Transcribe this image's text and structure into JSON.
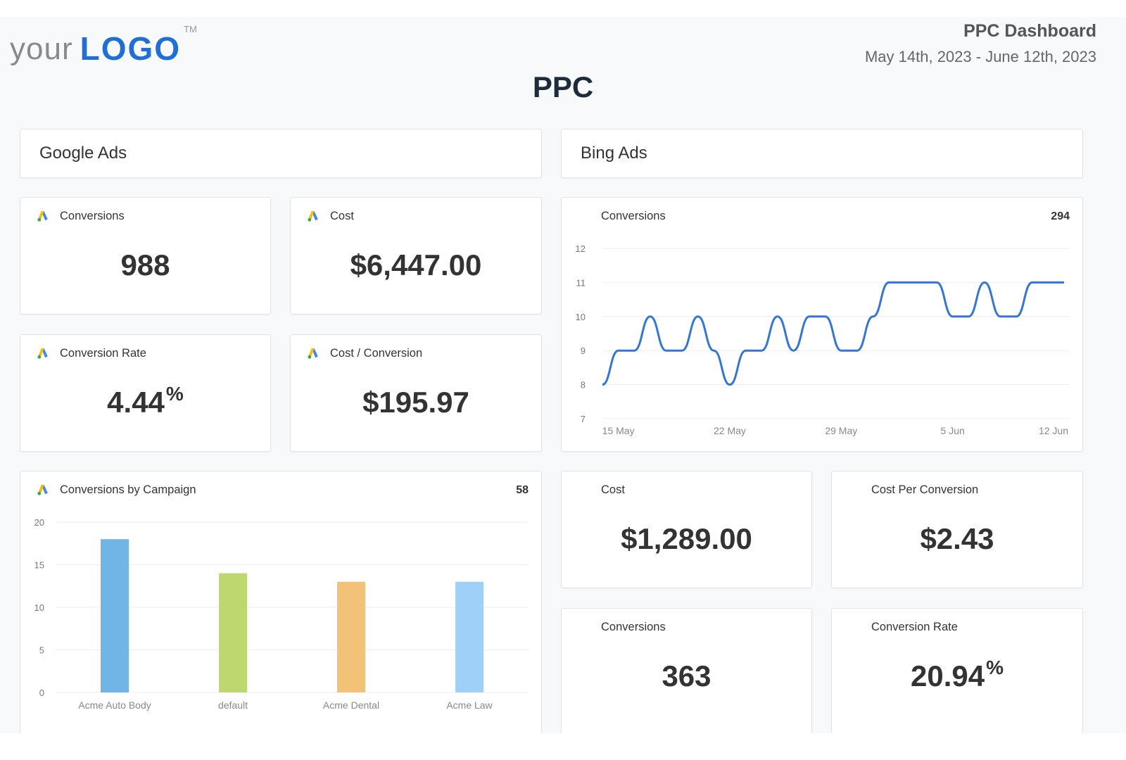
{
  "header": {
    "logo_your": "your",
    "logo_logo": "LOGO",
    "logo_tm": "TM",
    "dashboard_title": "PPC Dashboard",
    "date_range": "May 14th, 2023 - June 12th, 2023",
    "page_title": "PPC"
  },
  "sections": {
    "google": "Google Ads",
    "bing": "Bing Ads"
  },
  "icons": {
    "google": "google-ads-icon",
    "bing": "microsoft-ads-icon",
    "colors": {
      "google_blue": "#4285F4",
      "google_yellow": "#FBBC04",
      "google_green": "#34A853",
      "ms_red": "#F25022",
      "ms_green": "#7FBA00",
      "ms_blue": "#00A4EF",
      "ms_yellow": "#FFB900"
    }
  },
  "google_cards": {
    "conversions": {
      "label": "Conversions",
      "value": "988"
    },
    "cost": {
      "label": "Cost",
      "value": "$6,447.00"
    },
    "conversion_rate": {
      "label": "Conversion Rate",
      "value": "4.44",
      "unit": "%"
    },
    "cost_per_conversion": {
      "label": "Cost / Conversion",
      "value": "$195.97"
    }
  },
  "bing_cards": {
    "cost": {
      "label": "Cost",
      "value": "$1,289.00"
    },
    "cost_per_conversion": {
      "label": "Cost Per Conversion",
      "value": "$2.43"
    },
    "conversions": {
      "label": "Conversions",
      "value": "363"
    },
    "conversion_rate": {
      "label": "Conversion Rate",
      "value": "20.94",
      "unit": "%"
    }
  },
  "campaign_chart": {
    "label": "Conversions by Campaign",
    "count": "58"
  },
  "bing_line_chart": {
    "label": "Conversions",
    "count": "294"
  },
  "chart_data": [
    {
      "type": "bar",
      "title": "Conversions by Campaign",
      "categories": [
        "Acme Auto Body",
        "default",
        "Acme Dental",
        "Acme Law"
      ],
      "values": [
        18,
        14,
        13,
        13
      ],
      "colors": [
        "#70b5e5",
        "#bcd86e",
        "#f1c278",
        "#9fd1f8"
      ],
      "ylim": [
        0,
        20
      ],
      "yticks": [
        0,
        5,
        10,
        15,
        20
      ],
      "grid": true
    },
    {
      "type": "line",
      "title": "Conversions",
      "x": [
        "2023-05-14",
        "2023-05-15",
        "2023-05-16",
        "2023-05-17",
        "2023-05-18",
        "2023-05-19",
        "2023-05-20",
        "2023-05-21",
        "2023-05-22",
        "2023-05-23",
        "2023-05-24",
        "2023-05-25",
        "2023-05-26",
        "2023-05-27",
        "2023-05-28",
        "2023-05-29",
        "2023-05-30",
        "2023-05-31",
        "2023-06-01",
        "2023-06-02",
        "2023-06-03",
        "2023-06-04",
        "2023-06-05",
        "2023-06-06",
        "2023-06-07",
        "2023-06-08",
        "2023-06-09",
        "2023-06-10",
        "2023-06-11",
        "2023-06-12"
      ],
      "values": [
        8,
        9,
        9,
        10,
        9,
        9,
        10,
        9,
        8,
        9,
        9,
        10,
        9,
        10,
        10,
        9,
        9,
        10,
        11,
        11,
        11,
        11,
        10,
        10,
        11,
        10,
        10,
        11,
        11,
        11
      ],
      "xticks": [
        "15 May",
        "22 May",
        "29 May",
        "5 Jun",
        "12 Jun"
      ],
      "ylim": [
        7,
        12
      ],
      "yticks": [
        7,
        8,
        9,
        10,
        11,
        12
      ],
      "color": "#3575d3",
      "grid": true
    }
  ]
}
